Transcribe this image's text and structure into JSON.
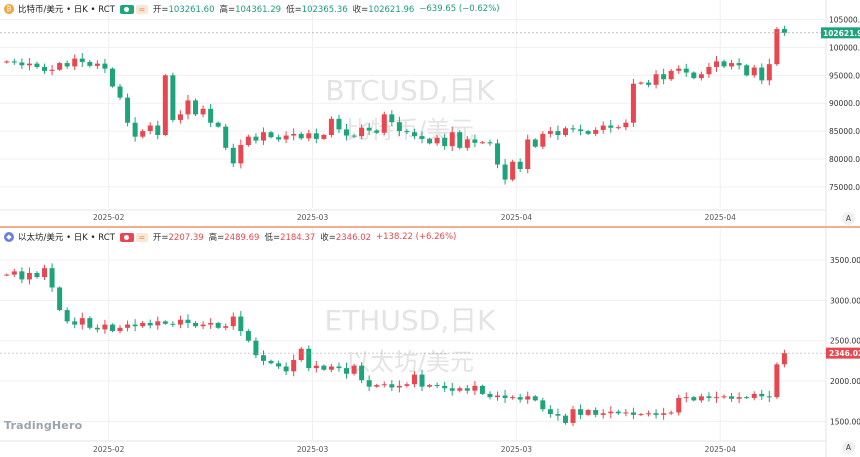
{
  "brand": "TradingHero",
  "axis_button": "A",
  "colors": {
    "up": "#e8474f",
    "down": "#1ea47a",
    "grid": "#f0f0f0",
    "divider": "#f0b090"
  },
  "btc": {
    "symbol": "比特币/美元 • 日K • RCT",
    "icon": "bitcoin-icon",
    "open_label": "开=",
    "open": "103261.60",
    "high_label": "高=",
    "high": "104361.29",
    "low_label": "低=",
    "low": "102365.36",
    "close_label": "收=",
    "close": "102621.96",
    "change": "−639.65 (−0.62%)",
    "watermark_main": "BTCUSD,日K",
    "watermark_sub": "比特币/美元",
    "price_tag": "102621.96"
  },
  "eth": {
    "symbol": "以太坊/美元 • 日K • RCT",
    "icon": "ethereum-icon",
    "open_label": "开=",
    "open": "2207.39",
    "high_label": "高=",
    "high": "2489.69",
    "low_label": "低=",
    "low": "2184.37",
    "close_label": "收=",
    "close": "2346.02",
    "change": "+138.22 (+6.26%)",
    "watermark_main": "ETHUSD,日K",
    "watermark_sub": "以太坊/美元",
    "price_tag": "2346.02"
  },
  "chart_data": [
    {
      "type": "candlestick",
      "series_name": "BTCUSD",
      "ylim": [
        73000,
        106000
      ],
      "y_ticks": [
        75000,
        80000,
        85000,
        90000,
        95000,
        100000,
        105000
      ],
      "y_tick_labels": [
        "75000.00",
        "80000.00",
        "85000.00",
        "90000.00",
        "95000.00",
        "100000.00",
        "105000.00"
      ],
      "x_tick_labels": [
        "2025-02",
        "2025-03",
        "2025-04",
        "2025-04"
      ],
      "x_tick_index": [
        14,
        41,
        68,
        95
      ],
      "closes": [
        97500,
        97300,
        96800,
        97100,
        96500,
        95800,
        96000,
        97200,
        96600,
        98000,
        97400,
        96700,
        97100,
        96200,
        93000,
        91000,
        86500,
        84000,
        85000,
        86000,
        84300,
        95000,
        87000,
        88000,
        90500,
        88000,
        89000,
        86500,
        85800,
        82000,
        79200,
        82500,
        84000,
        83300,
        84800,
        83900,
        83500,
        84200,
        84500,
        83700,
        84600,
        83600,
        84300,
        87200,
        85300,
        84200,
        84100,
        85600,
        85100,
        84700,
        88000,
        86600,
        85000,
        84800,
        84100,
        83600,
        82800,
        83800,
        82300,
        84800,
        82000,
        83500,
        82900,
        83000,
        82800,
        79000,
        76300,
        79500,
        78200,
        83500,
        82200,
        84500,
        85000,
        84300,
        85500,
        85300,
        85000,
        84500,
        85200,
        86000,
        85600,
        85700,
        86500,
        93500,
        93700,
        93300,
        95200,
        94300,
        95800,
        96200,
        95500,
        94500,
        95200,
        96500,
        97500,
        96600,
        97200,
        96800,
        95000,
        96400,
        94100,
        97000,
        103300,
        102622
      ]
    },
    {
      "type": "candlestick",
      "series_name": "ETHUSD",
      "ylim": [
        1380,
        3650
      ],
      "y_ticks": [
        1500,
        2000,
        2500,
        3000,
        3500
      ],
      "y_tick_labels": [
        "1500.00",
        "2000.00",
        "2500.00",
        "3000.00",
        "3500.00"
      ],
      "x_tick_labels": [
        "2025-02",
        "2025-03",
        "2025-03",
        "2025-04"
      ],
      "x_tick_index": [
        14,
        41,
        68,
        95
      ],
      "closes": [
        3320,
        3360,
        3260,
        3340,
        3290,
        3400,
        3160,
        2880,
        2740,
        2700,
        2780,
        2660,
        2640,
        2700,
        2620,
        2660,
        2700,
        2680,
        2720,
        2690,
        2740,
        2710,
        2700,
        2760,
        2720,
        2680,
        2700,
        2720,
        2660,
        2680,
        2800,
        2620,
        2500,
        2320,
        2250,
        2220,
        2180,
        2120,
        2260,
        2400,
        2160,
        2190,
        2140,
        2180,
        2160,
        2090,
        2190,
        2010,
        1930,
        1950,
        1960,
        1920,
        1940,
        1960,
        2080,
        1930,
        1950,
        1940,
        1910,
        1880,
        1910,
        1880,
        1940,
        1840,
        1800,
        1820,
        1790,
        1800,
        1770,
        1810,
        1760,
        1650,
        1590,
        1570,
        1480,
        1650,
        1580,
        1640,
        1580,
        1600,
        1620,
        1600,
        1610,
        1580,
        1590,
        1600,
        1580,
        1600,
        1610,
        1790,
        1800,
        1760,
        1810,
        1790,
        1800,
        1810,
        1780,
        1800,
        1790,
        1840,
        1810,
        1800,
        2207,
        2346
      ]
    }
  ]
}
